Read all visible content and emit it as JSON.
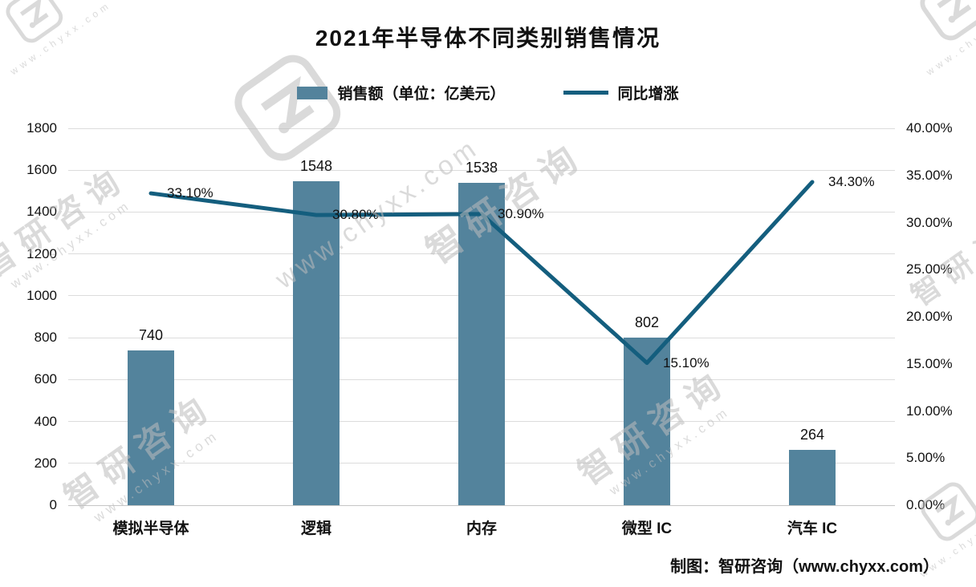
{
  "title": "2021年半导体不同类别销售情况",
  "legend": {
    "bar": "销售额（单位：亿美元）",
    "line": "同比增涨"
  },
  "footer": "制图：智研咨询（www.chyxx.com）",
  "watermark": {
    "brand": "智研咨询",
    "url": "www.chyxx.com",
    "logo_icon": "zhiyan-logo-icon"
  },
  "colors": {
    "bar": "#53839c",
    "line": "#145e7e",
    "grid": "#dcdcdc",
    "text": "#111111",
    "watermark": "#bdbdbd"
  },
  "chart_data": {
    "type": "bar",
    "title": "2021年半导体不同类别销售情况",
    "categories": [
      "模拟半导体",
      "逻辑",
      "内存",
      "微型 IC",
      "汽车 IC"
    ],
    "series": [
      {
        "name": "销售额（单位：亿美元）",
        "type": "bar",
        "axis": "left",
        "values": [
          740,
          1548,
          1538,
          802,
          264
        ],
        "labels": [
          "740",
          "1548",
          "1538",
          "802",
          "264"
        ]
      },
      {
        "name": "同比增涨",
        "type": "line",
        "axis": "right",
        "values": [
          33.1,
          30.8,
          30.9,
          15.1,
          34.3
        ],
        "labels": [
          "33.10%",
          "30.80%",
          "30.90%",
          "15.10%",
          "34.30%"
        ]
      }
    ],
    "left_axis": {
      "min": 0,
      "max": 1800,
      "step": 200,
      "tick_labels": [
        "0",
        "200",
        "400",
        "600",
        "800",
        "1000",
        "1200",
        "1400",
        "1600",
        "1800"
      ]
    },
    "right_axis": {
      "min": 0,
      "max": 40,
      "step": 5,
      "tick_labels": [
        "0.00%",
        "5.00%",
        "10.00%",
        "15.00%",
        "20.00%",
        "25.00%",
        "30.00%",
        "35.00%",
        "40.00%"
      ]
    },
    "grid": true,
    "legend_position": "top"
  }
}
